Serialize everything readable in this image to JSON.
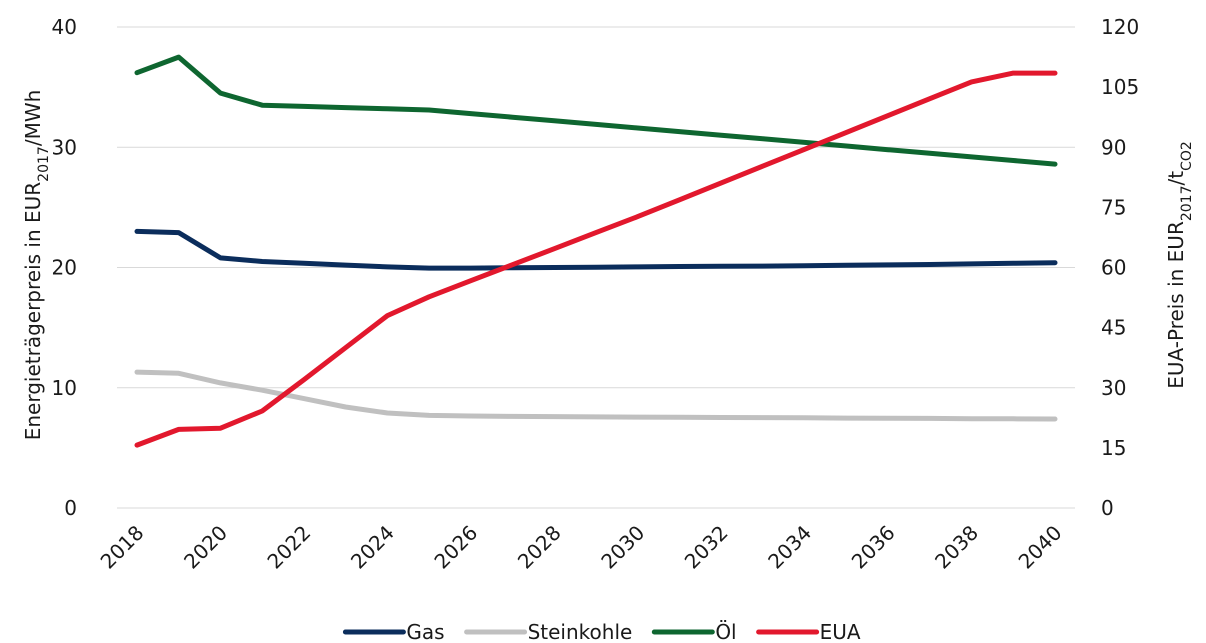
{
  "chart_data": {
    "type": "line",
    "x": [
      2018,
      2019,
      2020,
      2021,
      2022,
      2023,
      2024,
      2025,
      2026,
      2027,
      2028,
      2029,
      2030,
      2031,
      2032,
      2033,
      2034,
      2035,
      2036,
      2037,
      2038,
      2039,
      2040
    ],
    "x_tick_labels": [
      "2018",
      "2020",
      "2022",
      "2024",
      "2026",
      "2028",
      "2030",
      "2032",
      "2034",
      "2036",
      "2038",
      "2040"
    ],
    "y_left": {
      "label_main": "Energieträgerpreis in EUR",
      "label_sub": "2017",
      "label_tail": "/MWh",
      "range": [
        0,
        40
      ],
      "ticks": [
        "0",
        "10",
        "20",
        "30",
        "40"
      ]
    },
    "y_right": {
      "label_main": "EUA-Preis in EUR",
      "label_sub": "2017",
      "label_tail": "/t",
      "label_sub2": "CO2",
      "range": [
        0,
        120
      ],
      "ticks": [
        "0",
        "15",
        "30",
        "45",
        "60",
        "75",
        "90",
        "105",
        "120"
      ]
    },
    "grid": "horizontal",
    "legend_position": "bottom",
    "series": [
      {
        "name": "Gas",
        "axis": "left",
        "color": "#0b2d5c",
        "values": [
          23.0,
          22.9,
          20.8,
          20.5,
          20.35,
          20.2,
          20.05,
          19.95,
          19.95,
          19.98,
          20.0,
          20.02,
          20.05,
          20.08,
          20.1,
          20.12,
          20.15,
          20.18,
          20.22,
          20.25,
          20.3,
          20.35,
          20.4
        ]
      },
      {
        "name": "Steinkohle",
        "axis": "left",
        "color": "#c0c0c0",
        "values": [
          11.3,
          11.2,
          10.4,
          9.8,
          9.1,
          8.4,
          7.9,
          7.7,
          7.65,
          7.62,
          7.6,
          7.58,
          7.56,
          7.55,
          7.53,
          7.52,
          7.5,
          7.48,
          7.46,
          7.45,
          7.43,
          7.42,
          7.4
        ]
      },
      {
        "name": "Öl",
        "axis": "left",
        "color": "#0e6630",
        "values": [
          36.2,
          37.5,
          34.5,
          33.5,
          33.4,
          33.3,
          33.2,
          33.1,
          32.8,
          32.5,
          32.2,
          31.9,
          31.6,
          31.3,
          31.0,
          30.7,
          30.4,
          30.1,
          29.8,
          29.5,
          29.2,
          28.9,
          28.6
        ]
      },
      {
        "name": "EUA",
        "axis": "right",
        "color": "#e2182d",
        "values": [
          15.7,
          19.6,
          19.9,
          24.2,
          32.0,
          40.0,
          48.0,
          52.7,
          56.7,
          60.7,
          64.7,
          68.7,
          72.7,
          76.9,
          81.1,
          85.3,
          89.5,
          93.7,
          97.9,
          102.1,
          106.3,
          108.5,
          108.5
        ]
      }
    ]
  }
}
